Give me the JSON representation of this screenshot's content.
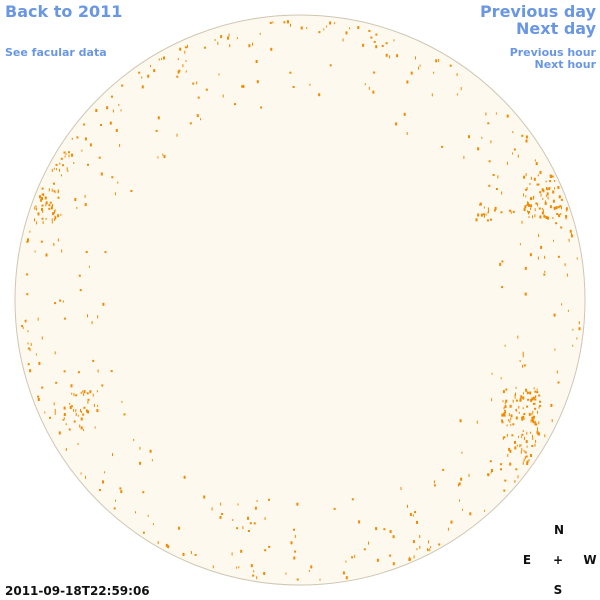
{
  "header": {
    "back_link": "Back to 2011",
    "facular_link": "See facular data",
    "previous_day": "Previous day",
    "next_day": "Next day",
    "previous_hour": "Previous hour",
    "next_hour": "Next hour"
  },
  "timestamp": "2011-09-18T22:59:06",
  "compass": {
    "north": "N",
    "east": "E",
    "center": "+",
    "west": "W",
    "south": "S"
  }
}
